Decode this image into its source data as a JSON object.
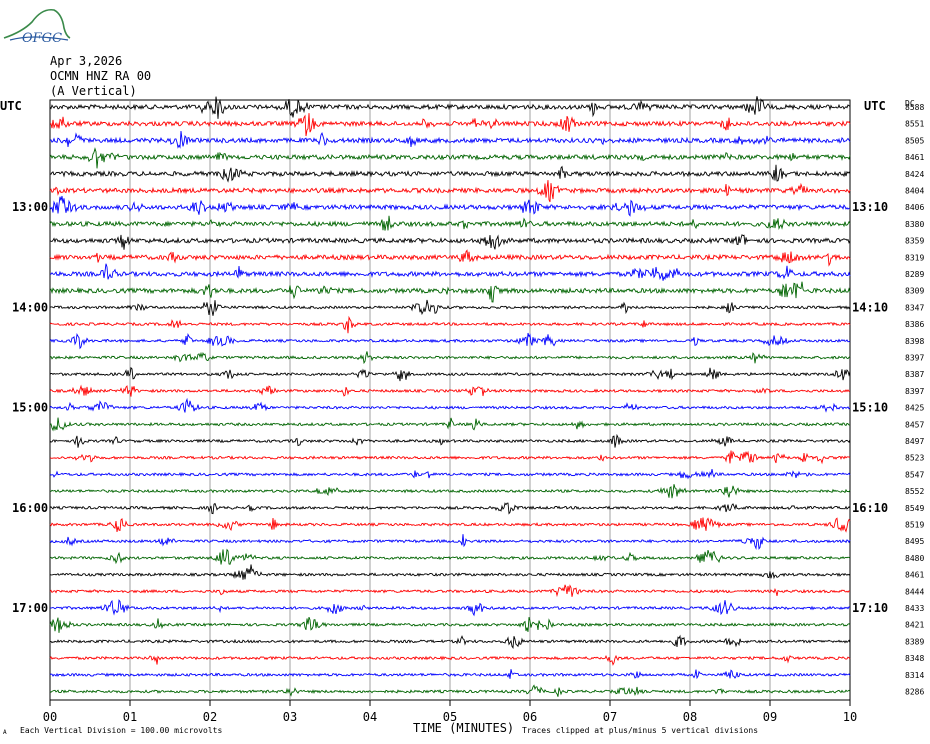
{
  "header": {
    "logo_text": "OFGC",
    "date": "Apr 3,2026",
    "station": "OCMN HNZ RA 00",
    "component": "(A Vertical)"
  },
  "chart_data": {
    "type": "line",
    "left_axis_label": "UTC",
    "right_axis_label": "UTC",
    "dc_label": "DC",
    "trace_colors": [
      "#000000",
      "#ff0000",
      "#0000ff",
      "#006400"
    ],
    "trace_count": 36,
    "left_time_labels": [
      "13:00",
      "14:00",
      "15:00",
      "16:00",
      "17:00"
    ],
    "right_time_labels": [
      "13:10",
      "14:10",
      "15:10",
      "16:10",
      "17:10"
    ],
    "time_label_trace_index": [
      6,
      12,
      18,
      24,
      30
    ],
    "dc_values": [
      "8588",
      "8551",
      "8505",
      "8461",
      "8424",
      "8404",
      "8406",
      "8380",
      "8359",
      "8319",
      "8289",
      "8309",
      "8347",
      "8386",
      "8398",
      "8397",
      "8387",
      "8397",
      "8425",
      "8457",
      "8497",
      "8523",
      "8547",
      "8552",
      "8549",
      "8519",
      "8495",
      "8480",
      "8461",
      "8444",
      "8433",
      "8421",
      "8389",
      "8348",
      "8314",
      "8286"
    ],
    "x_ticks": [
      "00",
      "01",
      "02",
      "03",
      "04",
      "05",
      "06",
      "07",
      "08",
      "09",
      "10"
    ],
    "xlim": [
      0,
      10
    ],
    "xlabel": "TIME (MINUTES)",
    "footer_left": "Each Vertical Division =  100.00 microvolts",
    "footer_right": "Traces clipped at plus/minus 5 vertical divisions",
    "corner_mark": "A"
  }
}
